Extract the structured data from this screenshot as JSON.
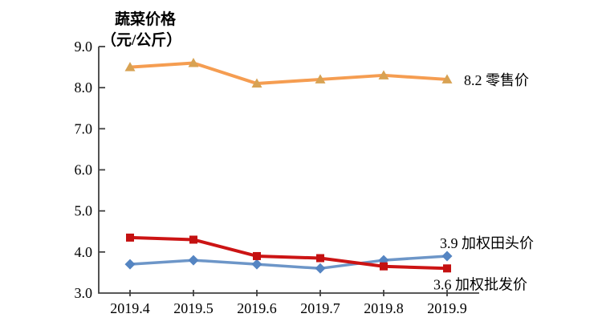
{
  "page": {
    "background": "#ffffff"
  },
  "chart_data": {
    "type": "line",
    "title": "蔬菜价格",
    "unit_label": "（元/公斤）",
    "categories": [
      "2019.4",
      "2019.5",
      "2019.6",
      "2019.7",
      "2019.8",
      "2019.9"
    ],
    "x": [
      1,
      2,
      3,
      4,
      5,
      6
    ],
    "y_axis": {
      "min": 3.0,
      "max": 9.0,
      "step": 1.0,
      "tick_labels": [
        "9.0",
        "8.0",
        "7.0",
        "6.0",
        "5.0",
        "4.0",
        "3.0"
      ]
    },
    "ylim": [
      3.0,
      9.0
    ],
    "grid": false,
    "legend_position": "end-of-line-annotations",
    "axis_color": "#404040",
    "text_color": "#000000",
    "series": [
      {
        "name": "零售价",
        "marker": "triangle",
        "line_color": "#F59D51",
        "marker_color": "#D8A253",
        "values": [
          8.5,
          8.6,
          8.1,
          8.2,
          8.3,
          8.2
        ],
        "end_value": 8.2,
        "end_label": "8.2 零售价"
      },
      {
        "name": "加权田头价",
        "marker": "diamond",
        "line_color": "#6D96C8",
        "marker_color": "#5585C2",
        "values": [
          3.7,
          3.8,
          3.7,
          3.6,
          3.8,
          3.9
        ],
        "end_value": 3.9,
        "end_label": "3.9 加权田头价"
      },
      {
        "name": "加权批发价",
        "marker": "square",
        "line_color": "#CC1414",
        "marker_color": "#C41111",
        "values": [
          4.35,
          4.3,
          3.9,
          3.85,
          3.65,
          3.6
        ],
        "end_value": 3.6,
        "end_label": "3.6 加权批发价"
      }
    ]
  }
}
